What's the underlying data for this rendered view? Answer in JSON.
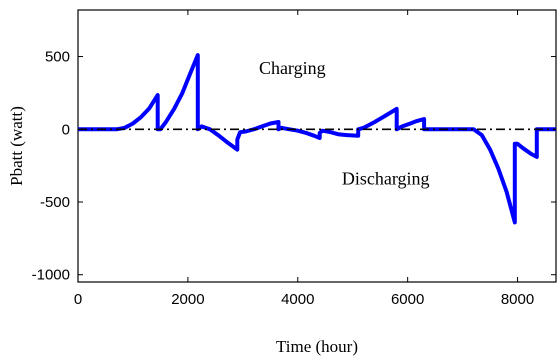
{
  "chart_data": {
    "type": "line",
    "xlabel": "Time (hour)",
    "ylabel": "Pbatt (watt)",
    "xlim": [
      0,
      8700
    ],
    "ylim": [
      -1050,
      820
    ],
    "x_ticks": [
      0,
      2000,
      4000,
      6000,
      8000
    ],
    "x_tick_labels": [
      "0",
      "2000",
      "4000",
      "6000",
      "8000"
    ],
    "y_ticks": [
      -1000,
      -500,
      0,
      500
    ],
    "y_tick_labels": [
      "-1000",
      "-500",
      "0",
      "500"
    ],
    "grid": false,
    "legend": "none",
    "annotations": [
      {
        "text": "Charging",
        "x": 3900,
        "y": 380
      },
      {
        "text": "Discharging",
        "x": 5600,
        "y": -380
      }
    ],
    "series": [
      {
        "color": "#0000ff",
        "style": "solid",
        "points": [
          [
            0,
            0
          ],
          [
            700,
            0
          ],
          [
            850,
            10
          ],
          [
            1000,
            40
          ],
          [
            1150,
            85
          ],
          [
            1300,
            145
          ],
          [
            1450,
            235
          ],
          [
            1450,
            0
          ],
          [
            1500,
            0
          ],
          [
            1600,
            50
          ],
          [
            1750,
            140
          ],
          [
            1900,
            250
          ],
          [
            2050,
            390
          ],
          [
            2180,
            510
          ],
          [
            2180,
            0
          ],
          [
            2250,
            20
          ],
          [
            2400,
            0
          ],
          [
            2550,
            -40
          ],
          [
            2700,
            -85
          ],
          [
            2900,
            -140
          ],
          [
            2900,
            -70
          ],
          [
            2950,
            -20
          ],
          [
            3050,
            -15
          ],
          [
            3200,
            0
          ],
          [
            3350,
            20
          ],
          [
            3500,
            40
          ],
          [
            3650,
            50
          ],
          [
            3650,
            0
          ],
          [
            3700,
            10
          ],
          [
            3850,
            0
          ],
          [
            4000,
            -10
          ],
          [
            4150,
            -25
          ],
          [
            4300,
            -45
          ],
          [
            4400,
            -60
          ],
          [
            4400,
            -25
          ],
          [
            4450,
            -10
          ],
          [
            4600,
            -20
          ],
          [
            4750,
            -35
          ],
          [
            4900,
            -40
          ],
          [
            5100,
            -45
          ],
          [
            5100,
            0
          ],
          [
            5200,
            10
          ],
          [
            5400,
            50
          ],
          [
            5600,
            95
          ],
          [
            5800,
            140
          ],
          [
            5800,
            0
          ],
          [
            5900,
            20
          ],
          [
            6050,
            40
          ],
          [
            6150,
            55
          ],
          [
            6300,
            70
          ],
          [
            6300,
            0
          ],
          [
            7200,
            0
          ],
          [
            7350,
            -40
          ],
          [
            7500,
            -140
          ],
          [
            7650,
            -270
          ],
          [
            7800,
            -430
          ],
          [
            7950,
            -640
          ],
          [
            7950,
            -100
          ],
          [
            8000,
            -100
          ],
          [
            8100,
            -130
          ],
          [
            8250,
            -170
          ],
          [
            8350,
            -190
          ],
          [
            8350,
            0
          ],
          [
            8700,
            0
          ]
        ]
      },
      {
        "color": "#000000",
        "style": "dashdot",
        "points": [
          [
            0,
            0
          ],
          [
            8700,
            0
          ]
        ]
      }
    ]
  }
}
